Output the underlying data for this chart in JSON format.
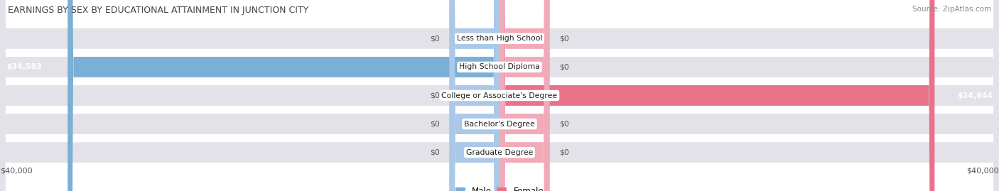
{
  "title": "EARNINGS BY SEX BY EDUCATIONAL ATTAINMENT IN JUNCTION CITY",
  "source": "Source: ZipAtlas.com",
  "categories": [
    "Less than High School",
    "High School Diploma",
    "College or Associate's Degree",
    "Bachelor's Degree",
    "Graduate Degree"
  ],
  "male_values": [
    0,
    34583,
    0,
    0,
    0
  ],
  "female_values": [
    0,
    0,
    34844,
    0,
    0
  ],
  "male_color": "#7bafd4",
  "female_color": "#e8728a",
  "bar_bg_color": "#e2e2e8",
  "row_bg_color": "#ebebf0",
  "xlim": 40000,
  "zero_stub": 4000,
  "axis_label_left": "$40,000",
  "axis_label_right": "$40,000",
  "bar_height": 0.72,
  "figsize": [
    14.06,
    2.69
  ],
  "dpi": 100,
  "title_fontsize": 9,
  "label_fontsize": 7.8,
  "value_fontsize": 7.8,
  "axis_fontsize": 8
}
